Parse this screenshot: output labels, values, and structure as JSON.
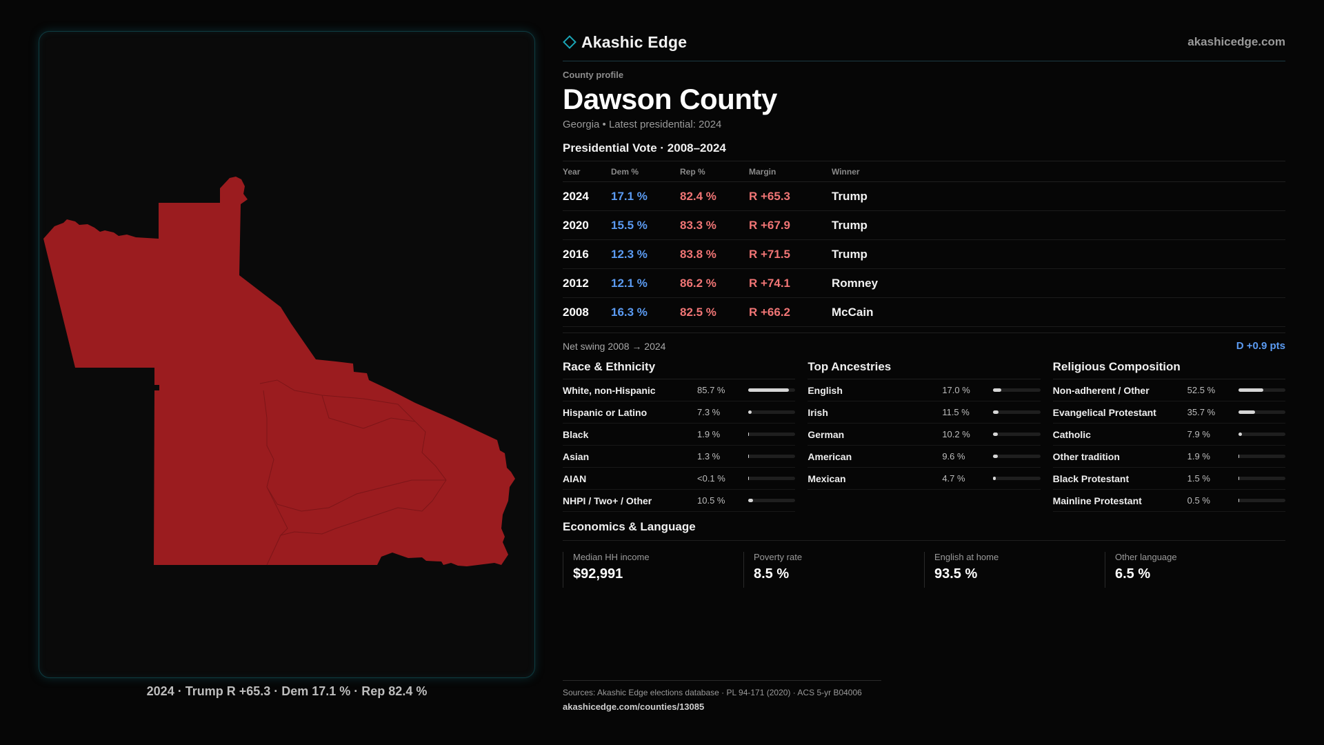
{
  "brand": {
    "name": "Akashic Edge",
    "url": "akashicedge.com",
    "accent": "#1aa6b7"
  },
  "profile": {
    "eyebrow": "County profile",
    "title": "Dawson County",
    "subtitle": "Georgia • Latest presidential: 2024"
  },
  "colors": {
    "dem": "#5b9bf2",
    "rep": "#f07575",
    "map_fill": "#9b1c1f"
  },
  "map": {
    "caption": "2024 · Trump R +65.3 · Dem 17.1 % · Rep 82.4 %"
  },
  "vote": {
    "title": "Presidential Vote · 2008–2024",
    "headers": [
      "Year",
      "Dem %",
      "Rep %",
      "Margin",
      "Winner"
    ],
    "rows": [
      {
        "year": "2024",
        "dem": "17.1 %",
        "rep": "82.4 %",
        "margin": "R +65.3",
        "winner": "Trump"
      },
      {
        "year": "2020",
        "dem": "15.5 %",
        "rep": "83.3 %",
        "margin": "R +67.9",
        "winner": "Trump"
      },
      {
        "year": "2016",
        "dem": "12.3 %",
        "rep": "83.8 %",
        "margin": "R +71.5",
        "winner": "Trump"
      },
      {
        "year": "2012",
        "dem": "12.1 %",
        "rep": "86.2 %",
        "margin": "R +74.1",
        "winner": "Romney"
      },
      {
        "year": "2008",
        "dem": "16.3 %",
        "rep": "82.5 %",
        "margin": "R +66.2",
        "winner": "McCain"
      }
    ],
    "swing_label": "Net swing 2008 → 2024",
    "swing_value": "D +0.9 pts"
  },
  "race": {
    "title": "Race & Ethnicity",
    "rows": [
      {
        "label": "White, non-Hispanic",
        "pct": "85.7 %",
        "fraction": 0.857
      },
      {
        "label": "Hispanic or Latino",
        "pct": "7.3 %",
        "fraction": 0.073
      },
      {
        "label": "Black",
        "pct": "1.9 %",
        "fraction": 0.019
      },
      {
        "label": "Asian",
        "pct": "1.3 %",
        "fraction": 0.013
      },
      {
        "label": "AIAN",
        "pct": "<0.1 %",
        "fraction": 0.001
      },
      {
        "label": "NHPI / Two+ / Other",
        "pct": "10.5 %",
        "fraction": 0.105
      }
    ]
  },
  "ancestry": {
    "title": "Top Ancestries",
    "rows": [
      {
        "label": "English",
        "pct": "17.0 %",
        "fraction": 0.17
      },
      {
        "label": "Irish",
        "pct": "11.5 %",
        "fraction": 0.115
      },
      {
        "label": "German",
        "pct": "10.2 %",
        "fraction": 0.102
      },
      {
        "label": "American",
        "pct": "9.6 %",
        "fraction": 0.096
      },
      {
        "label": "Mexican",
        "pct": "4.7 %",
        "fraction": 0.047
      }
    ]
  },
  "religion": {
    "title": "Religious Composition",
    "rows": [
      {
        "label": "Non-adherent / Other",
        "pct": "52.5 %",
        "fraction": 0.525
      },
      {
        "label": "Evangelical Protestant",
        "pct": "35.7 %",
        "fraction": 0.357
      },
      {
        "label": "Catholic",
        "pct": "7.9 %",
        "fraction": 0.079
      },
      {
        "label": "Other tradition",
        "pct": "1.9 %",
        "fraction": 0.019
      },
      {
        "label": "Black Protestant",
        "pct": "1.5 %",
        "fraction": 0.015
      },
      {
        "label": "Mainline Protestant",
        "pct": "0.5 %",
        "fraction": 0.005
      }
    ]
  },
  "economics": {
    "title": "Economics & Language",
    "items": [
      {
        "label": "Median HH income",
        "value": "$92,991"
      },
      {
        "label": "Poverty rate",
        "value": "8.5 %"
      },
      {
        "label": "English at home",
        "value": "93.5 %"
      },
      {
        "label": "Other language",
        "value": "6.5 %"
      }
    ]
  },
  "sources": {
    "line": "Sources: Akashic Edge elections database · PL 94-171 (2020) · ACS 5-yr B04006",
    "url": "akashicedge.com/counties/13085"
  }
}
